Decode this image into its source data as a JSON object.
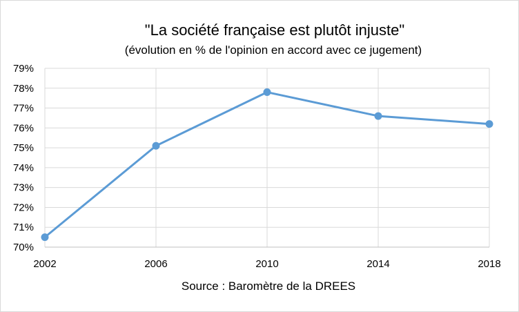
{
  "chart_data": {
    "type": "line",
    "title": "\"La société française est plutôt injuste\"",
    "subtitle": "(évolution en % de l'opinion en accord avec ce jugement)",
    "source": "Source : Baromètre de la DREES",
    "x": [
      "2002",
      "2006",
      "2010",
      "2014",
      "2018"
    ],
    "series": [
      {
        "values": [
          70.5,
          75.1,
          77.8,
          76.6,
          76.2
        ]
      }
    ],
    "ylim": [
      70,
      79
    ],
    "yticks": [
      70,
      71,
      72,
      73,
      74,
      75,
      76,
      77,
      78,
      79
    ],
    "ytick_labels": [
      "70%",
      "71%",
      "72%",
      "73%",
      "74%",
      "75%",
      "76%",
      "77%",
      "78%",
      "79%"
    ],
    "grid": true,
    "legend": "none",
    "colors": {
      "series": "#5b9bd5",
      "grid": "#d9d9d9",
      "axis": "#bfbfbf"
    }
  }
}
